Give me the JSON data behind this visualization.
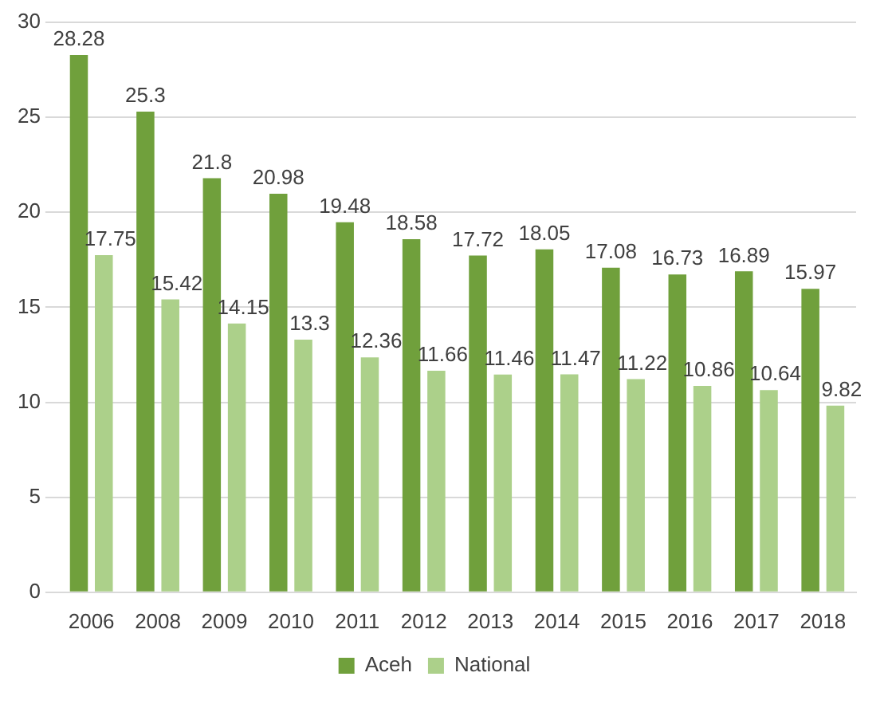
{
  "chart_data": {
    "type": "bar",
    "categories": [
      "2006",
      "2008",
      "2009",
      "2010",
      "2011",
      "2012",
      "2013",
      "2014",
      "2015",
      "2016",
      "2017",
      "2018"
    ],
    "series": [
      {
        "name": "Aceh",
        "color": "#70a03c",
        "values": [
          28.28,
          25.3,
          21.8,
          20.98,
          19.48,
          18.58,
          17.72,
          18.05,
          17.08,
          16.73,
          16.89,
          15.97
        ]
      },
      {
        "name": "National",
        "color": "#acd08a",
        "values": [
          17.75,
          15.42,
          14.15,
          13.3,
          12.36,
          11.66,
          11.46,
          11.47,
          11.22,
          10.86,
          10.64,
          9.82
        ]
      }
    ],
    "ylim": [
      0,
      30
    ],
    "yticks": [
      0,
      5,
      10,
      15,
      20,
      25,
      30
    ],
    "grid": "y",
    "legend": "bottom",
    "data_labels": true
  }
}
